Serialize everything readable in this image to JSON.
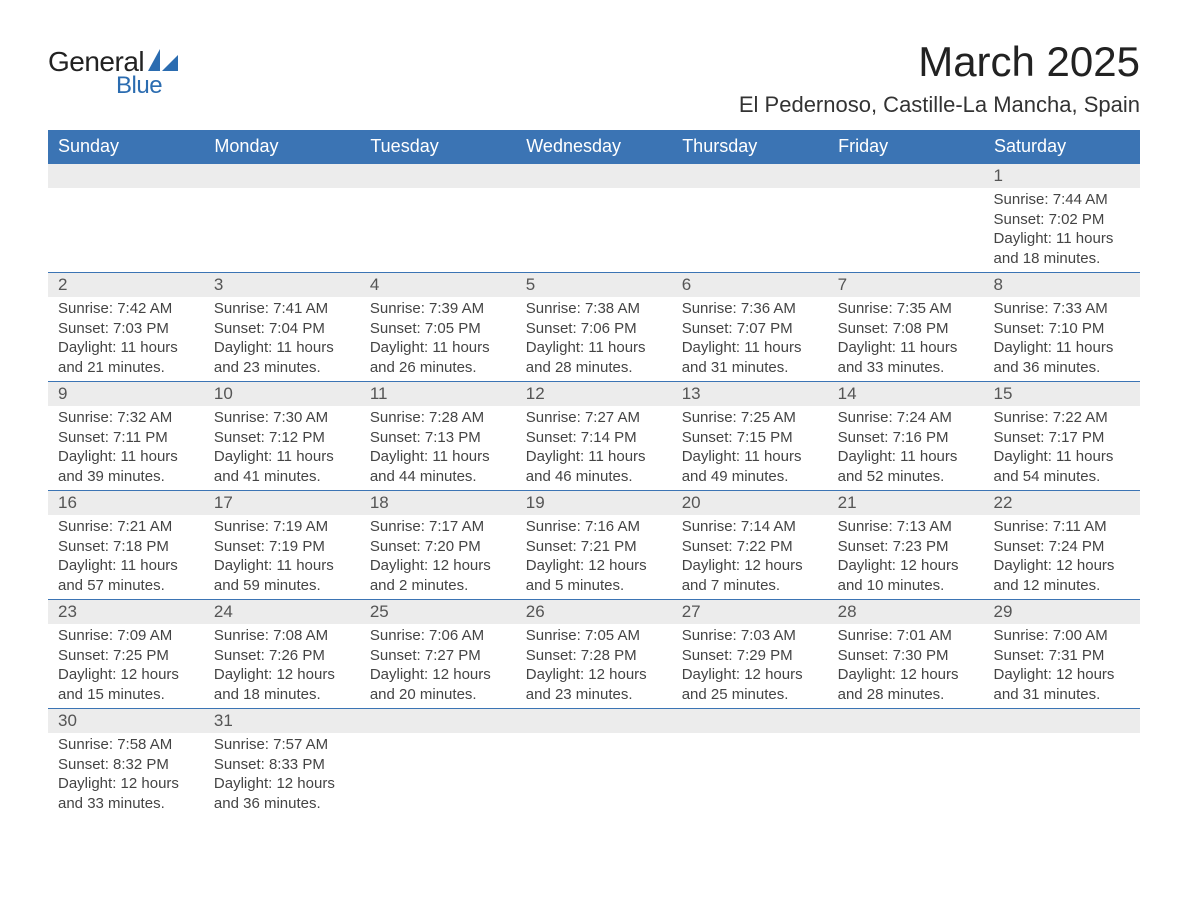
{
  "logo": {
    "text1": "General",
    "text2": "Blue",
    "shape_color": "#2b6cb0"
  },
  "title": "March 2025",
  "location": "El Pedernoso, Castille-La Mancha, Spain",
  "colors": {
    "header_bg": "#3b74b4",
    "header_text": "#ffffff",
    "daynum_bg": "#ececec",
    "border": "#3b74b4",
    "text": "#444444"
  },
  "weekdays": [
    "Sunday",
    "Monday",
    "Tuesday",
    "Wednesday",
    "Thursday",
    "Friday",
    "Saturday"
  ],
  "weeks": [
    [
      null,
      null,
      null,
      null,
      null,
      null,
      {
        "n": "1",
        "sr": "Sunrise: 7:44 AM",
        "ss": "Sunset: 7:02 PM",
        "d1": "Daylight: 11 hours",
        "d2": "and 18 minutes."
      }
    ],
    [
      {
        "n": "2",
        "sr": "Sunrise: 7:42 AM",
        "ss": "Sunset: 7:03 PM",
        "d1": "Daylight: 11 hours",
        "d2": "and 21 minutes."
      },
      {
        "n": "3",
        "sr": "Sunrise: 7:41 AM",
        "ss": "Sunset: 7:04 PM",
        "d1": "Daylight: 11 hours",
        "d2": "and 23 minutes."
      },
      {
        "n": "4",
        "sr": "Sunrise: 7:39 AM",
        "ss": "Sunset: 7:05 PM",
        "d1": "Daylight: 11 hours",
        "d2": "and 26 minutes."
      },
      {
        "n": "5",
        "sr": "Sunrise: 7:38 AM",
        "ss": "Sunset: 7:06 PM",
        "d1": "Daylight: 11 hours",
        "d2": "and 28 minutes."
      },
      {
        "n": "6",
        "sr": "Sunrise: 7:36 AM",
        "ss": "Sunset: 7:07 PM",
        "d1": "Daylight: 11 hours",
        "d2": "and 31 minutes."
      },
      {
        "n": "7",
        "sr": "Sunrise: 7:35 AM",
        "ss": "Sunset: 7:08 PM",
        "d1": "Daylight: 11 hours",
        "d2": "and 33 minutes."
      },
      {
        "n": "8",
        "sr": "Sunrise: 7:33 AM",
        "ss": "Sunset: 7:10 PM",
        "d1": "Daylight: 11 hours",
        "d2": "and 36 minutes."
      }
    ],
    [
      {
        "n": "9",
        "sr": "Sunrise: 7:32 AM",
        "ss": "Sunset: 7:11 PM",
        "d1": "Daylight: 11 hours",
        "d2": "and 39 minutes."
      },
      {
        "n": "10",
        "sr": "Sunrise: 7:30 AM",
        "ss": "Sunset: 7:12 PM",
        "d1": "Daylight: 11 hours",
        "d2": "and 41 minutes."
      },
      {
        "n": "11",
        "sr": "Sunrise: 7:28 AM",
        "ss": "Sunset: 7:13 PM",
        "d1": "Daylight: 11 hours",
        "d2": "and 44 minutes."
      },
      {
        "n": "12",
        "sr": "Sunrise: 7:27 AM",
        "ss": "Sunset: 7:14 PM",
        "d1": "Daylight: 11 hours",
        "d2": "and 46 minutes."
      },
      {
        "n": "13",
        "sr": "Sunrise: 7:25 AM",
        "ss": "Sunset: 7:15 PM",
        "d1": "Daylight: 11 hours",
        "d2": "and 49 minutes."
      },
      {
        "n": "14",
        "sr": "Sunrise: 7:24 AM",
        "ss": "Sunset: 7:16 PM",
        "d1": "Daylight: 11 hours",
        "d2": "and 52 minutes."
      },
      {
        "n": "15",
        "sr": "Sunrise: 7:22 AM",
        "ss": "Sunset: 7:17 PM",
        "d1": "Daylight: 11 hours",
        "d2": "and 54 minutes."
      }
    ],
    [
      {
        "n": "16",
        "sr": "Sunrise: 7:21 AM",
        "ss": "Sunset: 7:18 PM",
        "d1": "Daylight: 11 hours",
        "d2": "and 57 minutes."
      },
      {
        "n": "17",
        "sr": "Sunrise: 7:19 AM",
        "ss": "Sunset: 7:19 PM",
        "d1": "Daylight: 11 hours",
        "d2": "and 59 minutes."
      },
      {
        "n": "18",
        "sr": "Sunrise: 7:17 AM",
        "ss": "Sunset: 7:20 PM",
        "d1": "Daylight: 12 hours",
        "d2": "and 2 minutes."
      },
      {
        "n": "19",
        "sr": "Sunrise: 7:16 AM",
        "ss": "Sunset: 7:21 PM",
        "d1": "Daylight: 12 hours",
        "d2": "and 5 minutes."
      },
      {
        "n": "20",
        "sr": "Sunrise: 7:14 AM",
        "ss": "Sunset: 7:22 PM",
        "d1": "Daylight: 12 hours",
        "d2": "and 7 minutes."
      },
      {
        "n": "21",
        "sr": "Sunrise: 7:13 AM",
        "ss": "Sunset: 7:23 PM",
        "d1": "Daylight: 12 hours",
        "d2": "and 10 minutes."
      },
      {
        "n": "22",
        "sr": "Sunrise: 7:11 AM",
        "ss": "Sunset: 7:24 PM",
        "d1": "Daylight: 12 hours",
        "d2": "and 12 minutes."
      }
    ],
    [
      {
        "n": "23",
        "sr": "Sunrise: 7:09 AM",
        "ss": "Sunset: 7:25 PM",
        "d1": "Daylight: 12 hours",
        "d2": "and 15 minutes."
      },
      {
        "n": "24",
        "sr": "Sunrise: 7:08 AM",
        "ss": "Sunset: 7:26 PM",
        "d1": "Daylight: 12 hours",
        "d2": "and 18 minutes."
      },
      {
        "n": "25",
        "sr": "Sunrise: 7:06 AM",
        "ss": "Sunset: 7:27 PM",
        "d1": "Daylight: 12 hours",
        "d2": "and 20 minutes."
      },
      {
        "n": "26",
        "sr": "Sunrise: 7:05 AM",
        "ss": "Sunset: 7:28 PM",
        "d1": "Daylight: 12 hours",
        "d2": "and 23 minutes."
      },
      {
        "n": "27",
        "sr": "Sunrise: 7:03 AM",
        "ss": "Sunset: 7:29 PM",
        "d1": "Daylight: 12 hours",
        "d2": "and 25 minutes."
      },
      {
        "n": "28",
        "sr": "Sunrise: 7:01 AM",
        "ss": "Sunset: 7:30 PM",
        "d1": "Daylight: 12 hours",
        "d2": "and 28 minutes."
      },
      {
        "n": "29",
        "sr": "Sunrise: 7:00 AM",
        "ss": "Sunset: 7:31 PM",
        "d1": "Daylight: 12 hours",
        "d2": "and 31 minutes."
      }
    ],
    [
      {
        "n": "30",
        "sr": "Sunrise: 7:58 AM",
        "ss": "Sunset: 8:32 PM",
        "d1": "Daylight: 12 hours",
        "d2": "and 33 minutes."
      },
      {
        "n": "31",
        "sr": "Sunrise: 7:57 AM",
        "ss": "Sunset: 8:33 PM",
        "d1": "Daylight: 12 hours",
        "d2": "and 36 minutes."
      },
      null,
      null,
      null,
      null,
      null
    ]
  ]
}
